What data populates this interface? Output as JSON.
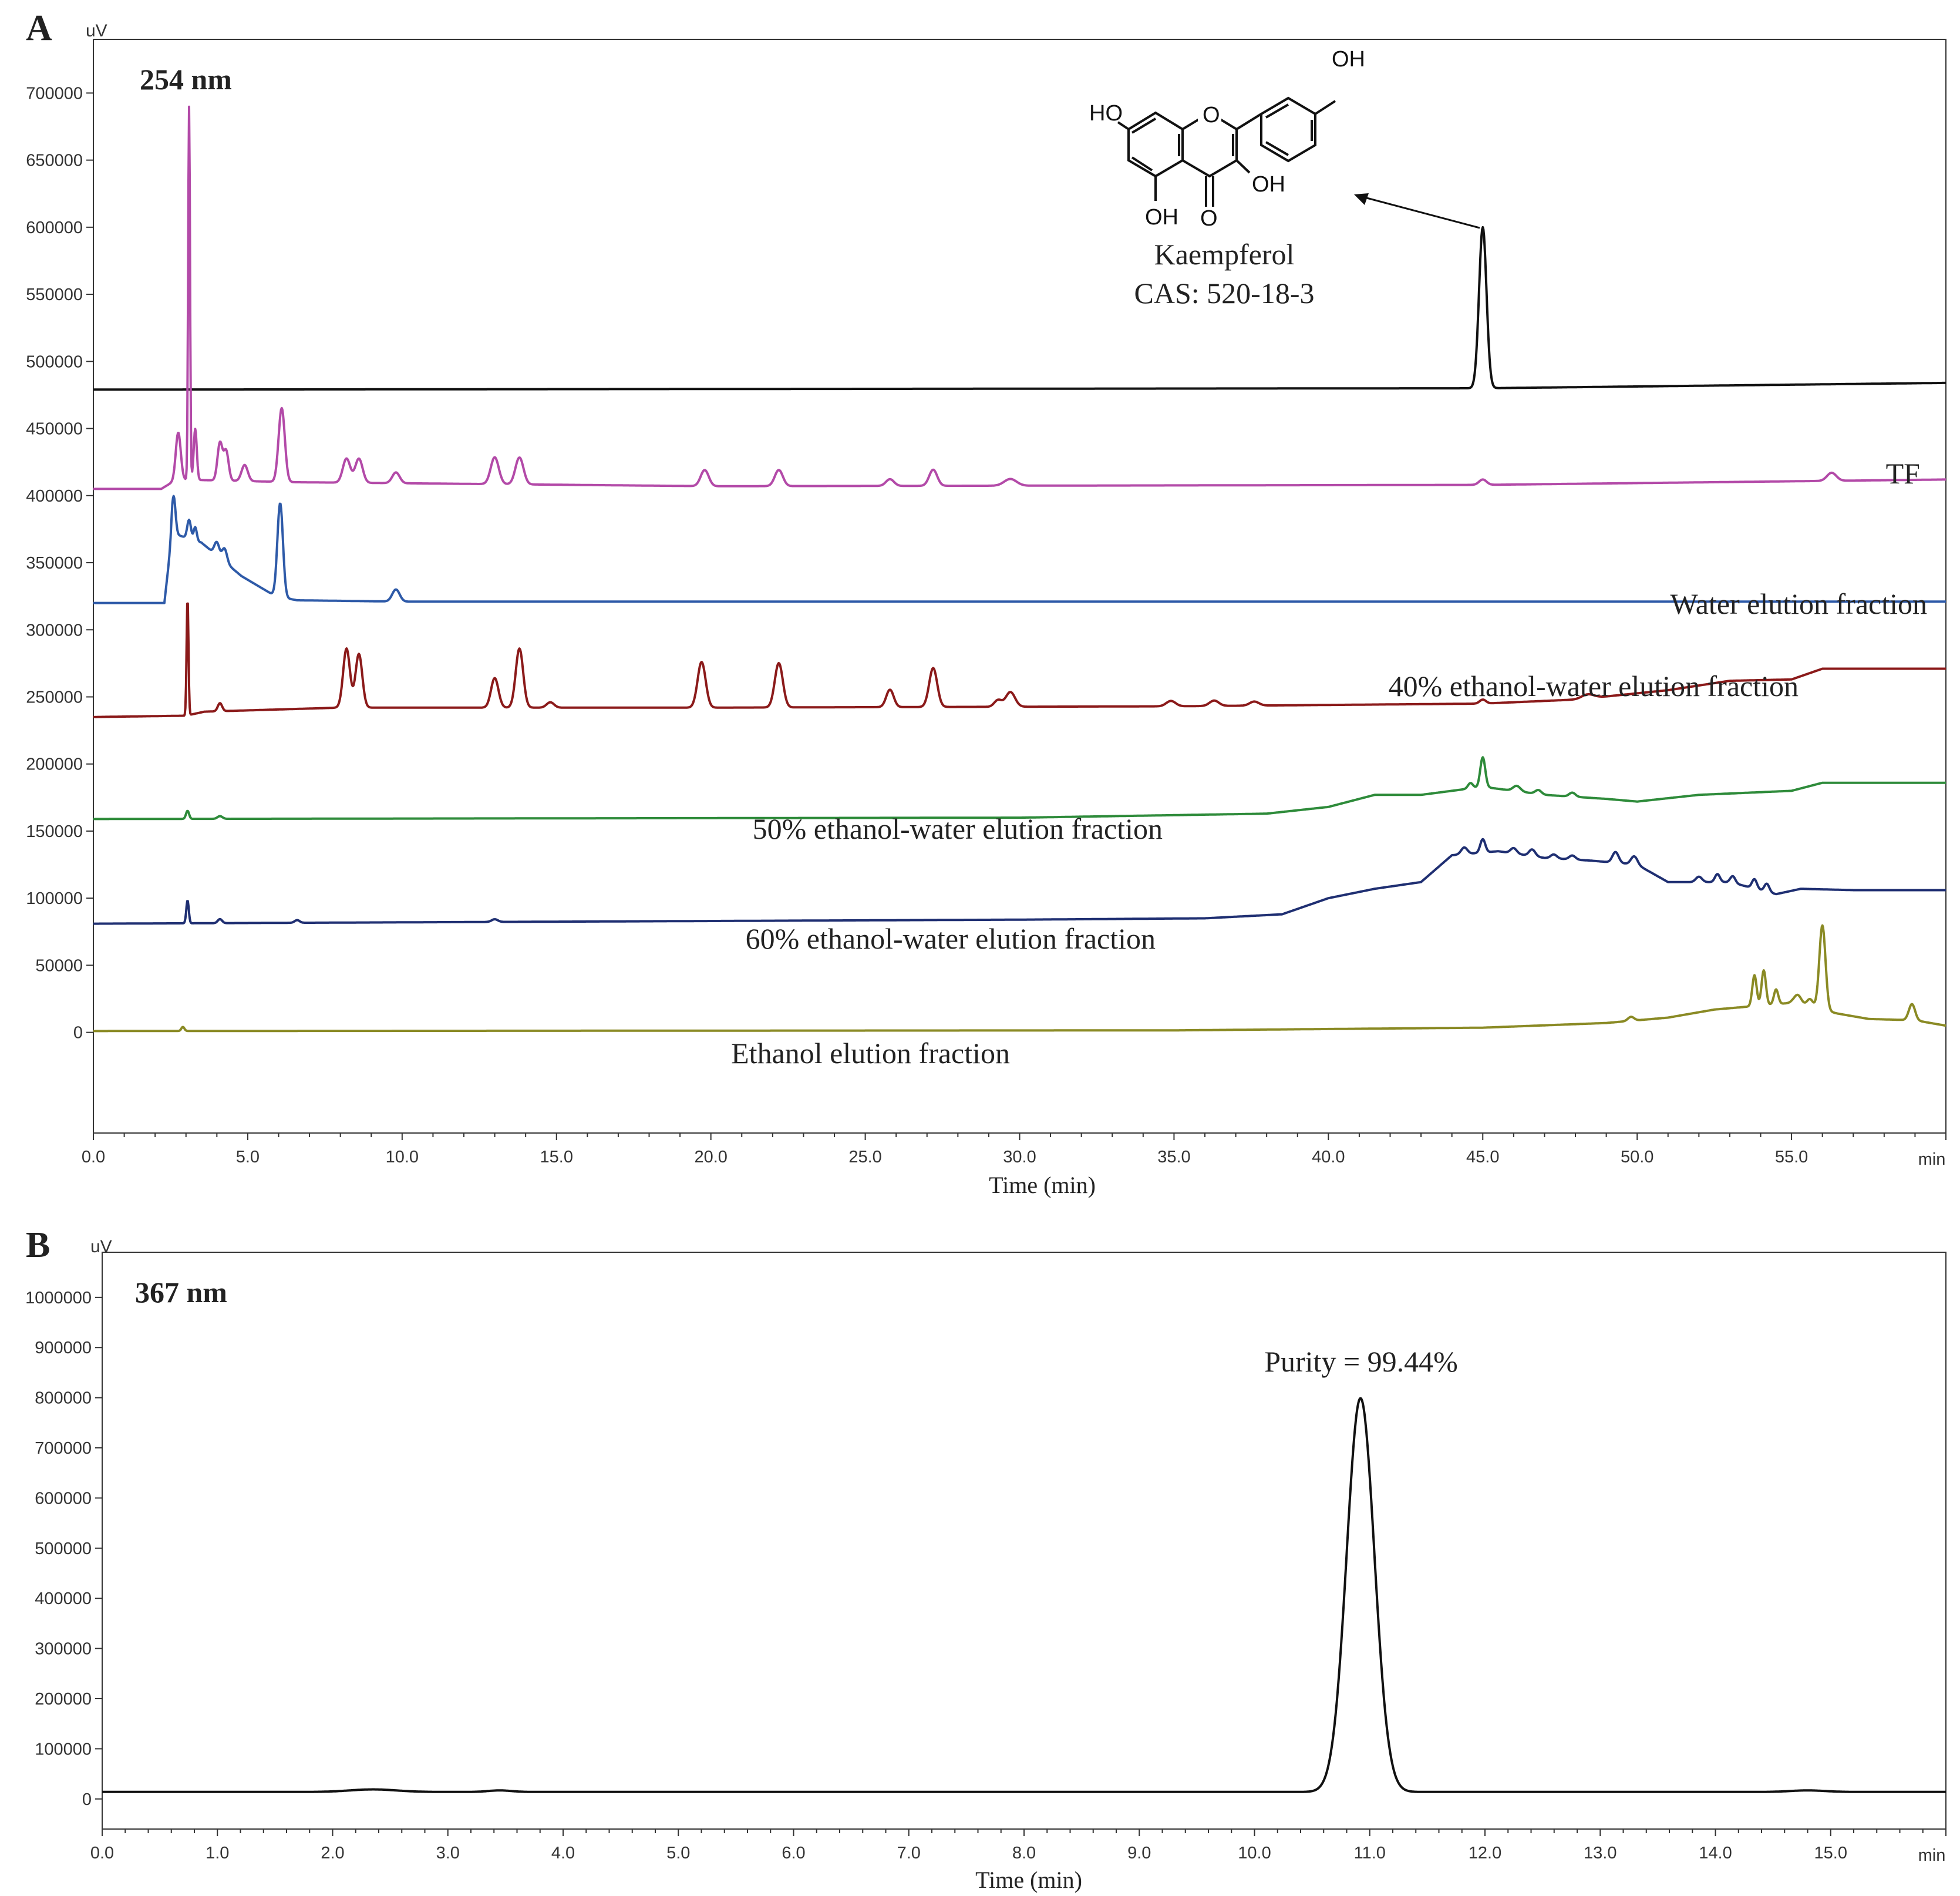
{
  "chart_data": [
    {
      "type": "line",
      "panel": "A",
      "wavelength": "254 nm",
      "xlabel": "Time (min)",
      "ylabel_unit": "uV",
      "x_unit": "min",
      "xlim": [
        0,
        60
      ],
      "ylim": [
        -75000,
        740000
      ],
      "x_ticks": [
        "0.0",
        "5.0",
        "10.0",
        "15.0",
        "20.0",
        "25.0",
        "30.0",
        "35.0",
        "40.0",
        "45.0",
        "50.0",
        "55.0"
      ],
      "x_tick_values": [
        0,
        5,
        10,
        15,
        20,
        25,
        30,
        35,
        40,
        45,
        50,
        55
      ],
      "y_ticks": [
        "0",
        "50000",
        "100000",
        "150000",
        "200000",
        "250000",
        "300000",
        "350000",
        "400000",
        "450000",
        "500000",
        "550000",
        "600000",
        "650000",
        "700000"
      ],
      "y_tick_values": [
        0,
        50000,
        100000,
        150000,
        200000,
        250000,
        300000,
        350000,
        400000,
        450000,
        500000,
        550000,
        600000,
        650000,
        700000
      ],
      "series": [
        {
          "name": "",
          "color": "#111111",
          "baseline": [
            [
              0,
              479000
            ],
            [
              45,
              480000
            ],
            [
              60,
              484000
            ]
          ],
          "peaks": [
            [
              45.0,
              120000,
              0.12
            ]
          ]
        },
        {
          "name": "TF",
          "color": "#b34aa8",
          "baseline": [
            [
              0,
              405000
            ],
            [
              2.2,
              405000
            ],
            [
              2.7,
              412000
            ],
            [
              6.5,
              410000
            ],
            [
              20,
              407000
            ],
            [
              45,
              408000
            ],
            [
              60,
              412000
            ]
          ],
          "peaks": [
            [
              2.75,
              35000,
              0.08
            ],
            [
              3.1,
              278000,
              0.03
            ],
            [
              3.3,
              38000,
              0.05
            ],
            [
              4.1,
              28000,
              0.08
            ],
            [
              4.3,
              22000,
              0.08
            ],
            [
              4.9,
              12000,
              0.1
            ],
            [
              6.1,
              55000,
              0.1
            ],
            [
              8.2,
              18000,
              0.12
            ],
            [
              8.6,
              18000,
              0.12
            ],
            [
              9.8,
              8000,
              0.12
            ],
            [
              13.0,
              20000,
              0.13
            ],
            [
              13.8,
              20000,
              0.13
            ],
            [
              19.8,
              12000,
              0.13
            ],
            [
              22.2,
              12000,
              0.13
            ],
            [
              25.8,
              5000,
              0.13
            ],
            [
              27.2,
              12000,
              0.13
            ],
            [
              29.7,
              5000,
              0.2
            ],
            [
              45.0,
              4000,
              0.12
            ],
            [
              56.3,
              6000,
              0.15
            ]
          ]
        },
        {
          "name": "Water elution fraction",
          "color": "#2e5aa8",
          "baseline": [
            [
              0,
              320000
            ],
            [
              2.3,
              320000
            ],
            [
              2.55,
              372000
            ],
            [
              3.5,
              365000
            ],
            [
              4.8,
              340000
            ],
            [
              5.9,
              325000
            ],
            [
              6.6,
              322000
            ],
            [
              10,
              321000
            ],
            [
              60,
              321000
            ]
          ],
          "peaks": [
            [
              2.6,
              28000,
              0.06
            ],
            [
              3.1,
              14000,
              0.06
            ],
            [
              3.3,
              10000,
              0.05
            ],
            [
              4.0,
              10000,
              0.08
            ],
            [
              4.25,
              10000,
              0.08
            ],
            [
              6.05,
              70000,
              0.09
            ],
            [
              9.8,
              9000,
              0.12
            ]
          ]
        },
        {
          "name": "40% ethanol-water elution fraction",
          "color": "#8b1a1a",
          "baseline": [
            [
              0,
              235000
            ],
            [
              3.0,
              236000
            ],
            [
              3.6,
              239000
            ],
            [
              8,
              242000
            ],
            [
              20,
              242000
            ],
            [
              35,
              243000
            ],
            [
              40,
              244000
            ],
            [
              45,
              245000
            ],
            [
              48,
              248000
            ],
            [
              51,
              255000
            ],
            [
              53,
              262000
            ],
            [
              55,
              263000
            ],
            [
              56,
              271000
            ],
            [
              60,
              271000
            ]
          ],
          "peaks": [
            [
              3.05,
              88000,
              0.03
            ],
            [
              4.1,
              6000,
              0.07
            ],
            [
              8.2,
              44000,
              0.11
            ],
            [
              8.6,
              40000,
              0.11
            ],
            [
              13.0,
              22000,
              0.12
            ],
            [
              13.8,
              44000,
              0.12
            ],
            [
              14.8,
              4000,
              0.12
            ],
            [
              19.7,
              34000,
              0.13
            ],
            [
              22.2,
              33000,
              0.13
            ],
            [
              25.8,
              13000,
              0.12
            ],
            [
              27.2,
              29000,
              0.13
            ],
            [
              29.3,
              5000,
              0.12
            ],
            [
              29.7,
              11000,
              0.15
            ],
            [
              34.9,
              4000,
              0.15
            ],
            [
              36.3,
              4000,
              0.15
            ],
            [
              37.6,
              3000,
              0.15
            ],
            [
              45.0,
              3000,
              0.1
            ],
            [
              48.4,
              3000,
              0.2
            ]
          ]
        },
        {
          "name": "50% ethanol-water elution fraction",
          "color": "#2e8b3a",
          "baseline": [
            [
              0,
              159000
            ],
            [
              30,
              160000
            ],
            [
              38,
              163000
            ],
            [
              40,
              168000
            ],
            [
              41.5,
              177000
            ],
            [
              43,
              177000
            ],
            [
              44,
              180000
            ],
            [
              45,
              183000
            ],
            [
              47,
              177000
            ],
            [
              49,
              174000
            ],
            [
              50,
              172000
            ],
            [
              52,
              177000
            ],
            [
              55,
              180000
            ],
            [
              56,
              186000
            ],
            [
              60,
              186000
            ]
          ],
          "peaks": [
            [
              3.05,
              6000,
              0.05
            ],
            [
              4.1,
              2000,
              0.08
            ],
            [
              44.6,
              4000,
              0.08
            ],
            [
              45.0,
              22000,
              0.08
            ],
            [
              46.1,
              4000,
              0.12
            ],
            [
              46.8,
              3000,
              0.1
            ],
            [
              47.9,
              3000,
              0.1
            ]
          ]
        },
        {
          "name": "60% ethanol-water elution fraction",
          "color": "#1f2f72",
          "baseline": [
            [
              0,
              81000
            ],
            [
              30,
              84000
            ],
            [
              36,
              85000
            ],
            [
              38.5,
              88000
            ],
            [
              40,
              100000
            ],
            [
              41.5,
              107000
            ],
            [
              43,
              112000
            ],
            [
              44,
              132000
            ],
            [
              45.5,
              135000
            ],
            [
              47,
              130000
            ],
            [
              48.5,
              128000
            ],
            [
              50,
              125000
            ],
            [
              51,
              112000
            ],
            [
              53,
              112000
            ],
            [
              54.5,
              103000
            ],
            [
              55.3,
              107000
            ],
            [
              57,
              106000
            ],
            [
              60,
              106000
            ]
          ],
          "peaks": [
            [
              3.05,
              17000,
              0.04
            ],
            [
              4.1,
              3000,
              0.07
            ],
            [
              6.6,
              2000,
              0.08
            ],
            [
              13.0,
              2000,
              0.1
            ],
            [
              44.4,
              5000,
              0.1
            ],
            [
              45.0,
              10000,
              0.08
            ],
            [
              46.0,
              4000,
              0.1
            ],
            [
              46.6,
              5000,
              0.1
            ],
            [
              47.3,
              3000,
              0.1
            ],
            [
              47.9,
              3000,
              0.1
            ],
            [
              49.3,
              8000,
              0.1
            ],
            [
              49.9,
              6000,
              0.1
            ],
            [
              52.0,
              4000,
              0.1
            ],
            [
              52.6,
              6000,
              0.08
            ],
            [
              53.1,
              5000,
              0.08
            ],
            [
              53.8,
              7000,
              0.08
            ],
            [
              54.2,
              6000,
              0.08
            ]
          ]
        },
        {
          "name": "Ethanol elution fraction",
          "color": "#8a8a24",
          "baseline": [
            [
              0,
              1000
            ],
            [
              35,
              1500
            ],
            [
              45,
              3500
            ],
            [
              49,
              7000
            ],
            [
              51,
              11000
            ],
            [
              52.5,
              17000
            ],
            [
              53.5,
              19000
            ],
            [
              55,
              22000
            ],
            [
              56.5,
              14000
            ],
            [
              57.5,
              10000
            ],
            [
              59,
              9000
            ],
            [
              60,
              5000
            ]
          ],
          "peaks": [
            [
              2.9,
              3000,
              0.05
            ],
            [
              49.8,
              3000,
              0.1
            ],
            [
              53.8,
              23000,
              0.07
            ],
            [
              54.1,
              26000,
              0.07
            ],
            [
              54.5,
              11000,
              0.07
            ],
            [
              55.2,
              7000,
              0.12
            ],
            [
              55.6,
              6000,
              0.1
            ],
            [
              56.0,
              63000,
              0.1
            ],
            [
              58.9,
              12000,
              0.1
            ]
          ]
        }
      ],
      "annotation": {
        "compound": "Kaempferol",
        "cas": "CAS: 520-18-3",
        "x": 45.0
      }
    },
    {
      "type": "line",
      "panel": "B",
      "wavelength": "367 nm",
      "xlabel": "Time (min)",
      "ylabel_unit": "uV",
      "x_unit": "min",
      "xlim": [
        0,
        16
      ],
      "ylim": [
        -60000,
        1090000
      ],
      "x_ticks": [
        "0.0",
        "1.0",
        "2.0",
        "3.0",
        "4.0",
        "5.0",
        "6.0",
        "7.0",
        "8.0",
        "9.0",
        "10.0",
        "11.0",
        "12.0",
        "13.0",
        "14.0",
        "15.0"
      ],
      "x_tick_values": [
        0,
        1,
        2,
        3,
        4,
        5,
        6,
        7,
        8,
        9,
        10,
        11,
        12,
        13,
        14,
        15
      ],
      "y_ticks": [
        "0",
        "100000",
        "200000",
        "300000",
        "400000",
        "500000",
        "600000",
        "700000",
        "800000",
        "900000",
        "1000000"
      ],
      "y_tick_values": [
        0,
        100000,
        200000,
        300000,
        400000,
        500000,
        600000,
        700000,
        800000,
        900000,
        1000000
      ],
      "series": [
        {
          "name": "",
          "color": "#111111",
          "baseline": [
            [
              0,
              14000
            ],
            [
              16,
              14000
            ]
          ],
          "peaks": [
            [
              10.92,
              785000,
              0.12
            ],
            [
              2.35,
              5000,
              0.2
            ],
            [
              3.45,
              3000,
              0.1
            ],
            [
              14.8,
              3000,
              0.15
            ]
          ]
        }
      ],
      "annotation": {
        "text": "Purity = 99.44%",
        "x": 10.92
      }
    }
  ],
  "chem": {
    "labels": [
      "HO",
      "OH",
      "O",
      "OH",
      "OH",
      "O"
    ]
  }
}
